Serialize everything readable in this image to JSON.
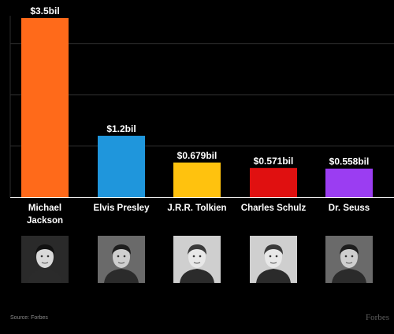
{
  "chart_data": {
    "type": "bar",
    "categories": [
      "Michael\nJackson",
      "Elvis Presley",
      "J.R.R. Tolkien",
      "Charles Schulz",
      "Dr. Seuss"
    ],
    "values": [
      3.5,
      1.2,
      0.679,
      0.571,
      0.558
    ],
    "data_labels": [
      "$3.5bil",
      "$1.2bil",
      "$0.679bil",
      "$0.571bil",
      "$0.558bil"
    ],
    "colors": [
      "#ff6a1a",
      "#1f96dc",
      "#ffc20e",
      "#e01010",
      "#9b3df2"
    ],
    "ylim": [
      0,
      3.5
    ],
    "grid": true,
    "gridline_values": [
      1,
      2,
      3
    ],
    "title": "",
    "xlabel": "",
    "ylabel": ""
  },
  "photos": [
    {
      "icon": "michael-jackson-photo",
      "tone": "dark"
    },
    {
      "icon": "elvis-presley-photo",
      "tone": "mid"
    },
    {
      "icon": "tolkien-photo",
      "tone": "light"
    },
    {
      "icon": "charles-schulz-photo",
      "tone": "light"
    },
    {
      "icon": "dr-seuss-photo",
      "tone": "mid"
    }
  ],
  "footer": {
    "source": "Source: Forbes",
    "brand": "Forbes"
  }
}
